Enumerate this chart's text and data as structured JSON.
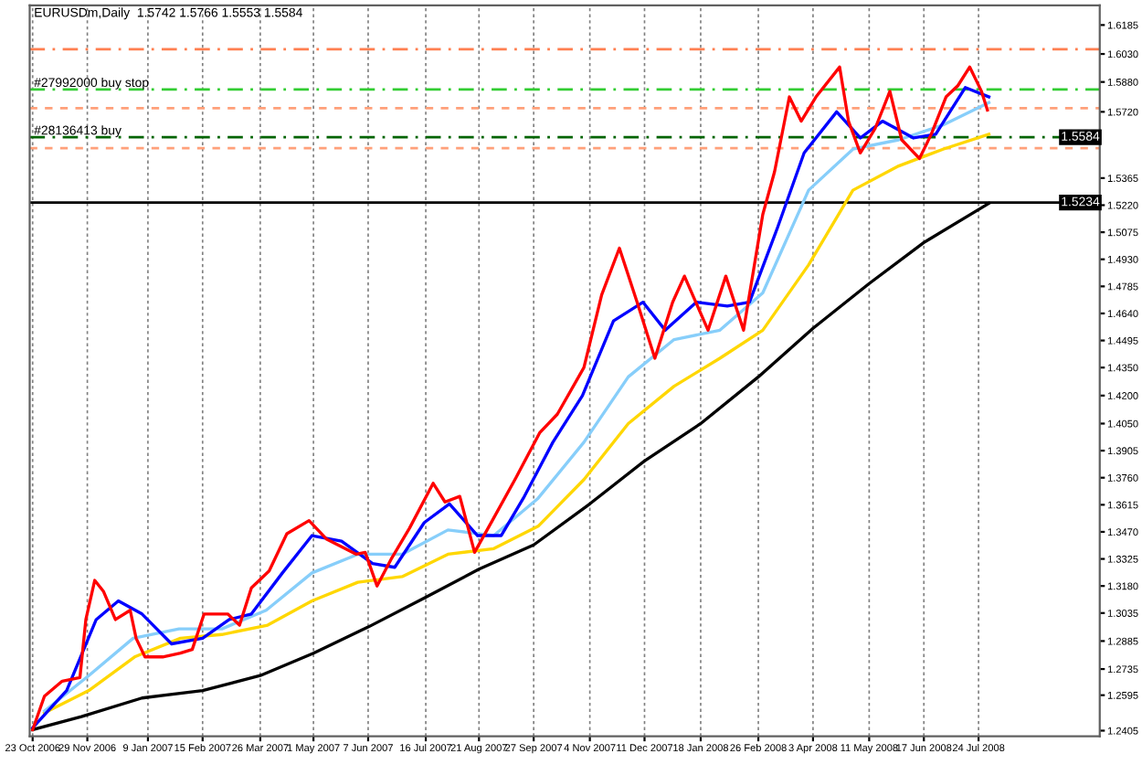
{
  "chart_data": {
    "type": "line",
    "title": "EURUSDm,Daily  1.5742 1.5766 1.5553 1.5584",
    "xlim": [
      "2006-10-21",
      "2008-10-14"
    ],
    "xticks": [
      {
        "value": "2006-10-23",
        "label": "23 Oct 2006"
      },
      {
        "value": "2006-11-29",
        "label": "29 Nov 2006"
      },
      {
        "value": "2007-01-09",
        "label": "9 Jan 2007"
      },
      {
        "value": "2007-02-15",
        "label": "15 Feb 2007"
      },
      {
        "value": "2007-03-26",
        "label": "26 Mar 2007"
      },
      {
        "value": "2007-05-01",
        "label": "1 May 2007"
      },
      {
        "value": "2007-06-07",
        "label": "7 Jun 2007"
      },
      {
        "value": "2007-07-16",
        "label": "16 Jul 2007"
      },
      {
        "value": "2007-08-21",
        "label": "21 Aug 2007"
      },
      {
        "value": "2007-09-27",
        "label": "27 Sep 2007"
      },
      {
        "value": "2007-11-04",
        "label": "4 Nov 2007"
      },
      {
        "value": "2007-12-11",
        "label": "11 Dec 2007"
      },
      {
        "value": "2008-01-18",
        "label": "18 Jan 2008"
      },
      {
        "value": "2008-02-26",
        "label": "26 Feb 2008"
      },
      {
        "value": "2008-04-03",
        "label": "3 Apr 2008"
      },
      {
        "value": "2008-05-11",
        "label": "11 May 2008"
      },
      {
        "value": "2008-06-17",
        "label": "17 Jun 2008"
      },
      {
        "value": "2008-07-24",
        "label": "24 Jul 2008"
      }
    ],
    "ylim": [
      1.2375,
      1.629
    ],
    "yticks": [
      1.6185,
      {
        "value": 1.603,
        "label": "1.6030"
      },
      {
        "value": 1.588,
        "label": "1.5880"
      },
      {
        "value": 1.572,
        "label": "1.5720"
      },
      1.5365,
      {
        "value": 1.522,
        "label": "1.5220"
      },
      1.5075,
      {
        "value": 1.493,
        "label": "1.4930"
      },
      1.4785,
      {
        "value": 1.464,
        "label": "1.4640"
      },
      1.4495,
      {
        "value": 1.435,
        "label": "1.4350"
      },
      {
        "value": 1.42,
        "label": "1.4200"
      },
      {
        "value": 1.405,
        "label": "1.4050"
      },
      1.3905,
      {
        "value": 1.376,
        "label": "1.3760"
      },
      1.3615,
      {
        "value": 1.347,
        "label": "1.3470"
      },
      1.3325,
      {
        "value": 1.318,
        "label": "1.3180"
      },
      1.3035,
      1.2885,
      1.2735,
      1.2595,
      1.2405
    ],
    "grid": "x",
    "legend": false,
    "ref_lines": [
      {
        "axis": "y",
        "value": 1.6055,
        "color": "#ff7f50",
        "line_style": "dashed"
      },
      {
        "axis": "y",
        "value": 1.584,
        "label": "#27992000 buy stop",
        "color": "#32cd32",
        "line_style": "dashed"
      },
      {
        "axis": "y",
        "value": 1.574,
        "color": "#ffa07a",
        "line_style": "dotted"
      },
      {
        "axis": "y",
        "value": 1.5584,
        "label": "#28136413 buy",
        "color": "#006400",
        "line_style": "dashed"
      },
      {
        "axis": "y",
        "value": 1.5525,
        "color": "#ffa07a",
        "line_style": "dotted"
      },
      {
        "axis": "y",
        "value": 1.5234,
        "color": "#000000",
        "line_style": "solid"
      }
    ],
    "annotations": [
      {
        "text": "1.5584",
        "x": "2008-10-14",
        "y": 1.5584
      },
      {
        "text": "1.5234",
        "x": "2008-10-14",
        "y": 1.5234
      }
    ],
    "series": [
      {
        "color": "#000000",
        "x": [
          "2006-10-23",
          "2006-11-25",
          "2007-01-05",
          "2007-02-15",
          "2007-03-26",
          "2007-05-01",
          "2007-06-07",
          "2007-07-16",
          "2007-08-21",
          "2007-09-27",
          "2007-11-04",
          "2007-12-11",
          "2008-01-18",
          "2008-02-26",
          "2008-04-03",
          "2008-05-11",
          "2008-06-17",
          "2008-07-31"
        ],
        "values": [
          1.241,
          1.248,
          1.258,
          1.262,
          1.27,
          1.282,
          1.296,
          1.312,
          1.327,
          1.34,
          1.362,
          1.385,
          1.405,
          1.43,
          1.456,
          1.48,
          1.502,
          1.523
        ]
      },
      {
        "color": "#ffd700",
        "x": [
          "2006-10-31",
          "2006-11-30",
          "2006-12-31",
          "2007-01-31",
          "2007-02-28",
          "2007-03-31",
          "2007-04-30",
          "2007-05-31",
          "2007-06-30",
          "2007-07-31",
          "2007-08-31",
          "2007-09-30",
          "2007-10-31",
          "2007-11-30",
          "2007-12-31",
          "2008-01-31",
          "2008-02-29",
          "2008-03-31",
          "2008-04-30",
          "2008-05-31",
          "2008-06-30",
          "2008-07-31"
        ],
        "values": [
          1.25,
          1.262,
          1.28,
          1.29,
          1.292,
          1.297,
          1.31,
          1.32,
          1.323,
          1.335,
          1.338,
          1.35,
          1.375,
          1.405,
          1.425,
          1.44,
          1.455,
          1.49,
          1.53,
          1.543,
          1.552,
          1.56
        ]
      },
      {
        "color": "#87cefa",
        "x": [
          "2006-10-31",
          "2006-11-30",
          "2006-12-30",
          "2007-01-30",
          "2007-02-28",
          "2007-03-30",
          "2007-04-30",
          "2007-05-31",
          "2007-06-30",
          "2007-07-31",
          "2007-08-31",
          "2007-09-30",
          "2007-10-31",
          "2007-11-30",
          "2007-12-31",
          "2008-01-31",
          "2008-02-29",
          "2008-03-31",
          "2008-04-30",
          "2008-05-31",
          "2008-06-30",
          "2008-07-31"
        ],
        "values": [
          1.251,
          1.27,
          1.29,
          1.295,
          1.295,
          1.305,
          1.325,
          1.335,
          1.335,
          1.348,
          1.345,
          1.365,
          1.395,
          1.43,
          1.45,
          1.455,
          1.475,
          1.53,
          1.552,
          1.557,
          1.565,
          1.577
        ]
      },
      {
        "color": "#0000ff",
        "x": [
          "2006-10-23",
          "2006-11-15",
          "2006-12-05",
          "2006-12-20",
          "2007-01-05",
          "2007-01-25",
          "2007-02-15",
          "2007-03-05",
          "2007-03-20",
          "2007-04-10",
          "2007-04-30",
          "2007-05-20",
          "2007-06-10",
          "2007-06-25",
          "2007-07-15",
          "2007-08-01",
          "2007-08-20",
          "2007-09-05",
          "2007-09-20",
          "2007-10-10",
          "2007-10-30",
          "2007-11-20",
          "2007-12-10",
          "2007-12-25",
          "2008-01-15",
          "2008-02-05",
          "2008-02-20",
          "2008-03-10",
          "2008-03-28",
          "2008-04-19",
          "2008-05-05",
          "2008-05-20",
          "2008-06-10",
          "2008-06-25",
          "2008-07-15",
          "2008-07-31"
        ],
        "values": [
          1.242,
          1.262,
          1.3,
          1.31,
          1.303,
          1.287,
          1.29,
          1.3,
          1.303,
          1.325,
          1.345,
          1.342,
          1.33,
          1.328,
          1.352,
          1.362,
          1.345,
          1.345,
          1.365,
          1.395,
          1.42,
          1.46,
          1.47,
          1.455,
          1.47,
          1.468,
          1.47,
          1.51,
          1.55,
          1.572,
          1.558,
          1.567,
          1.558,
          1.56,
          1.585,
          1.58
        ]
      },
      {
        "color": "#ff0000",
        "x": [
          "2006-10-23",
          "2006-10-31",
          "2006-11-12",
          "2006-11-24",
          "2006-11-28",
          "2006-12-04",
          "2006-12-10",
          "2006-12-18",
          "2006-12-28",
          "2007-01-01",
          "2007-01-07",
          "2007-01-19",
          "2007-01-31",
          "2007-02-08",
          "2007-02-16",
          "2007-03-04",
          "2007-03-12",
          "2007-03-20",
          "2007-04-01",
          "2007-04-13",
          "2007-04-28",
          "2007-05-10",
          "2007-05-30",
          "2007-06-05",
          "2007-06-13",
          "2007-06-23",
          "2007-07-05",
          "2007-07-21",
          "2007-07-29",
          "2007-08-08",
          "2007-08-18",
          "2007-08-30",
          "2007-09-15",
          "2007-10-01",
          "2007-10-13",
          "2007-10-31",
          "2007-11-12",
          "2007-11-24",
          "2007-12-06",
          "2007-12-18",
          "2007-12-30",
          "2008-01-07",
          "2008-01-23",
          "2008-02-04",
          "2008-02-16",
          "2008-02-29",
          "2008-03-08",
          "2008-03-18",
          "2008-03-26",
          "2008-04-05",
          "2008-04-21",
          "2008-04-27",
          "2008-05-05",
          "2008-05-15",
          "2008-05-25",
          "2008-06-02",
          "2008-06-14",
          "2008-06-22",
          "2008-07-02",
          "2008-07-10",
          "2008-07-18",
          "2008-07-26",
          "2008-07-30"
        ],
        "values": [
          1.241,
          1.259,
          1.267,
          1.269,
          1.3,
          1.321,
          1.315,
          1.3,
          1.305,
          1.29,
          1.28,
          1.28,
          1.282,
          1.284,
          1.303,
          1.303,
          1.297,
          1.317,
          1.326,
          1.346,
          1.353,
          1.343,
          1.335,
          1.336,
          1.318,
          1.333,
          1.349,
          1.373,
          1.363,
          1.366,
          1.336,
          1.353,
          1.376,
          1.4,
          1.41,
          1.435,
          1.474,
          1.499,
          1.47,
          1.44,
          1.47,
          1.484,
          1.455,
          1.484,
          1.455,
          1.517,
          1.54,
          1.58,
          1.567,
          1.58,
          1.596,
          1.567,
          1.55,
          1.563,
          1.583,
          1.557,
          1.547,
          1.56,
          1.58,
          1.586,
          1.596,
          1.583,
          1.573
        ]
      }
    ]
  }
}
